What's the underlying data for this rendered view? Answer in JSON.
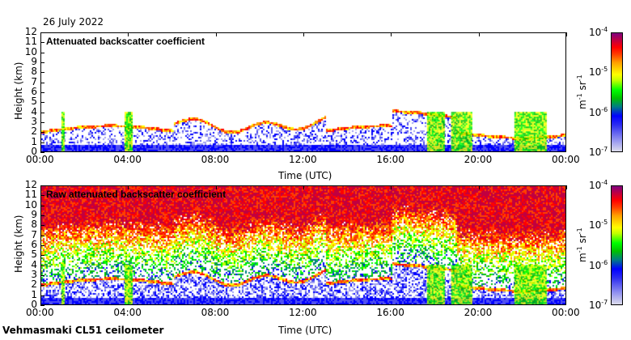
{
  "date": "26 July 2022",
  "footer": "Vehmasmaki CL51 ceilometer",
  "colorbar": {
    "ticks": [
      "-4",
      "-5",
      "-6",
      "-7"
    ],
    "base": "10",
    "unit_m": "m",
    "unit_m_exp": "-1",
    "unit_sr": " sr",
    "unit_sr_exp": "-1"
  },
  "chart_data": [
    {
      "type": "heatmap",
      "title": "Attenuated backscatter coefficient",
      "xlabel": "Time (UTC)",
      "ylabel": "Height (km)",
      "xticks": [
        "00:00",
        "04:00",
        "08:00",
        "12:00",
        "16:00",
        "20:00",
        "00:00"
      ],
      "yticks": [
        "0",
        "1",
        "2",
        "3",
        "4",
        "5",
        "6",
        "7",
        "8",
        "9",
        "10",
        "11",
        "12"
      ],
      "ylim": [
        0,
        12
      ],
      "clim_log10": [
        -7,
        -4
      ]
    },
    {
      "type": "heatmap",
      "title": "Raw attenuated backscatter coefficient",
      "xlabel": "Time (UTC)",
      "ylabel": "Height (km)",
      "xticks": [
        "00:00",
        "04:00",
        "08:00",
        "12:00",
        "16:00",
        "20:00",
        "00:00"
      ],
      "yticks": [
        "0",
        "1",
        "2",
        "3",
        "4",
        "5",
        "6",
        "7",
        "8",
        "9",
        "10",
        "11",
        "12"
      ],
      "ylim": [
        0,
        12
      ],
      "clim_log10": [
        -7,
        -4
      ]
    }
  ]
}
